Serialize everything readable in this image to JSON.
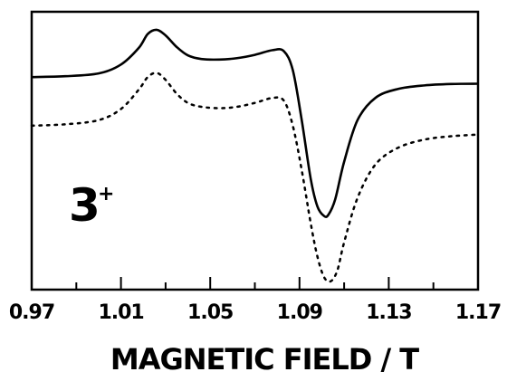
{
  "chart_data": {
    "type": "line",
    "xlabel": "MAGNETIC FIELD / T",
    "ylabel": "",
    "title": "",
    "xlim": [
      0.97,
      1.17
    ],
    "ylim": [
      0,
      1
    ],
    "grid": false,
    "legend": "none",
    "x_ticks": [
      "0.97",
      "1.01",
      "1.05",
      "1.09",
      "1.13",
      "1.17"
    ],
    "annotation": {
      "label": "3",
      "superscript": "+"
    },
    "series": [
      {
        "style": "solid",
        "x": [
          0.97,
          0.985,
          1.0,
          1.01,
          1.018,
          1.022,
          1.026,
          1.03,
          1.035,
          1.04,
          1.046,
          1.054,
          1.062,
          1.07,
          1.078,
          1.083,
          1.087,
          1.091,
          1.095,
          1.098,
          1.101,
          1.103,
          1.106,
          1.11,
          1.116,
          1.124,
          1.134,
          1.146,
          1.158,
          1.17
        ],
        "y": [
          0.765,
          0.768,
          0.778,
          0.81,
          0.87,
          0.92,
          0.935,
          0.915,
          0.873,
          0.843,
          0.83,
          0.828,
          0.833,
          0.845,
          0.862,
          0.858,
          0.79,
          0.61,
          0.4,
          0.3,
          0.265,
          0.27,
          0.325,
          0.46,
          0.61,
          0.69,
          0.722,
          0.735,
          0.74,
          0.741
        ]
      },
      {
        "style": "dotted",
        "x": [
          0.97,
          0.985,
          1.0,
          1.01,
          1.018,
          1.022,
          1.026,
          1.03,
          1.035,
          1.04,
          1.046,
          1.054,
          1.062,
          1.07,
          1.078,
          1.083,
          1.087,
          1.091,
          1.095,
          1.098,
          1.101,
          1.104,
          1.107,
          1.11,
          1.116,
          1.124,
          1.134,
          1.146,
          1.158,
          1.17
        ],
        "y": [
          0.59,
          0.595,
          0.61,
          0.65,
          0.72,
          0.765,
          0.78,
          0.755,
          0.705,
          0.672,
          0.658,
          0.653,
          0.658,
          0.672,
          0.69,
          0.68,
          0.59,
          0.43,
          0.24,
          0.12,
          0.045,
          0.03,
          0.07,
          0.17,
          0.33,
          0.45,
          0.51,
          0.54,
          0.552,
          0.558
        ]
      }
    ]
  }
}
